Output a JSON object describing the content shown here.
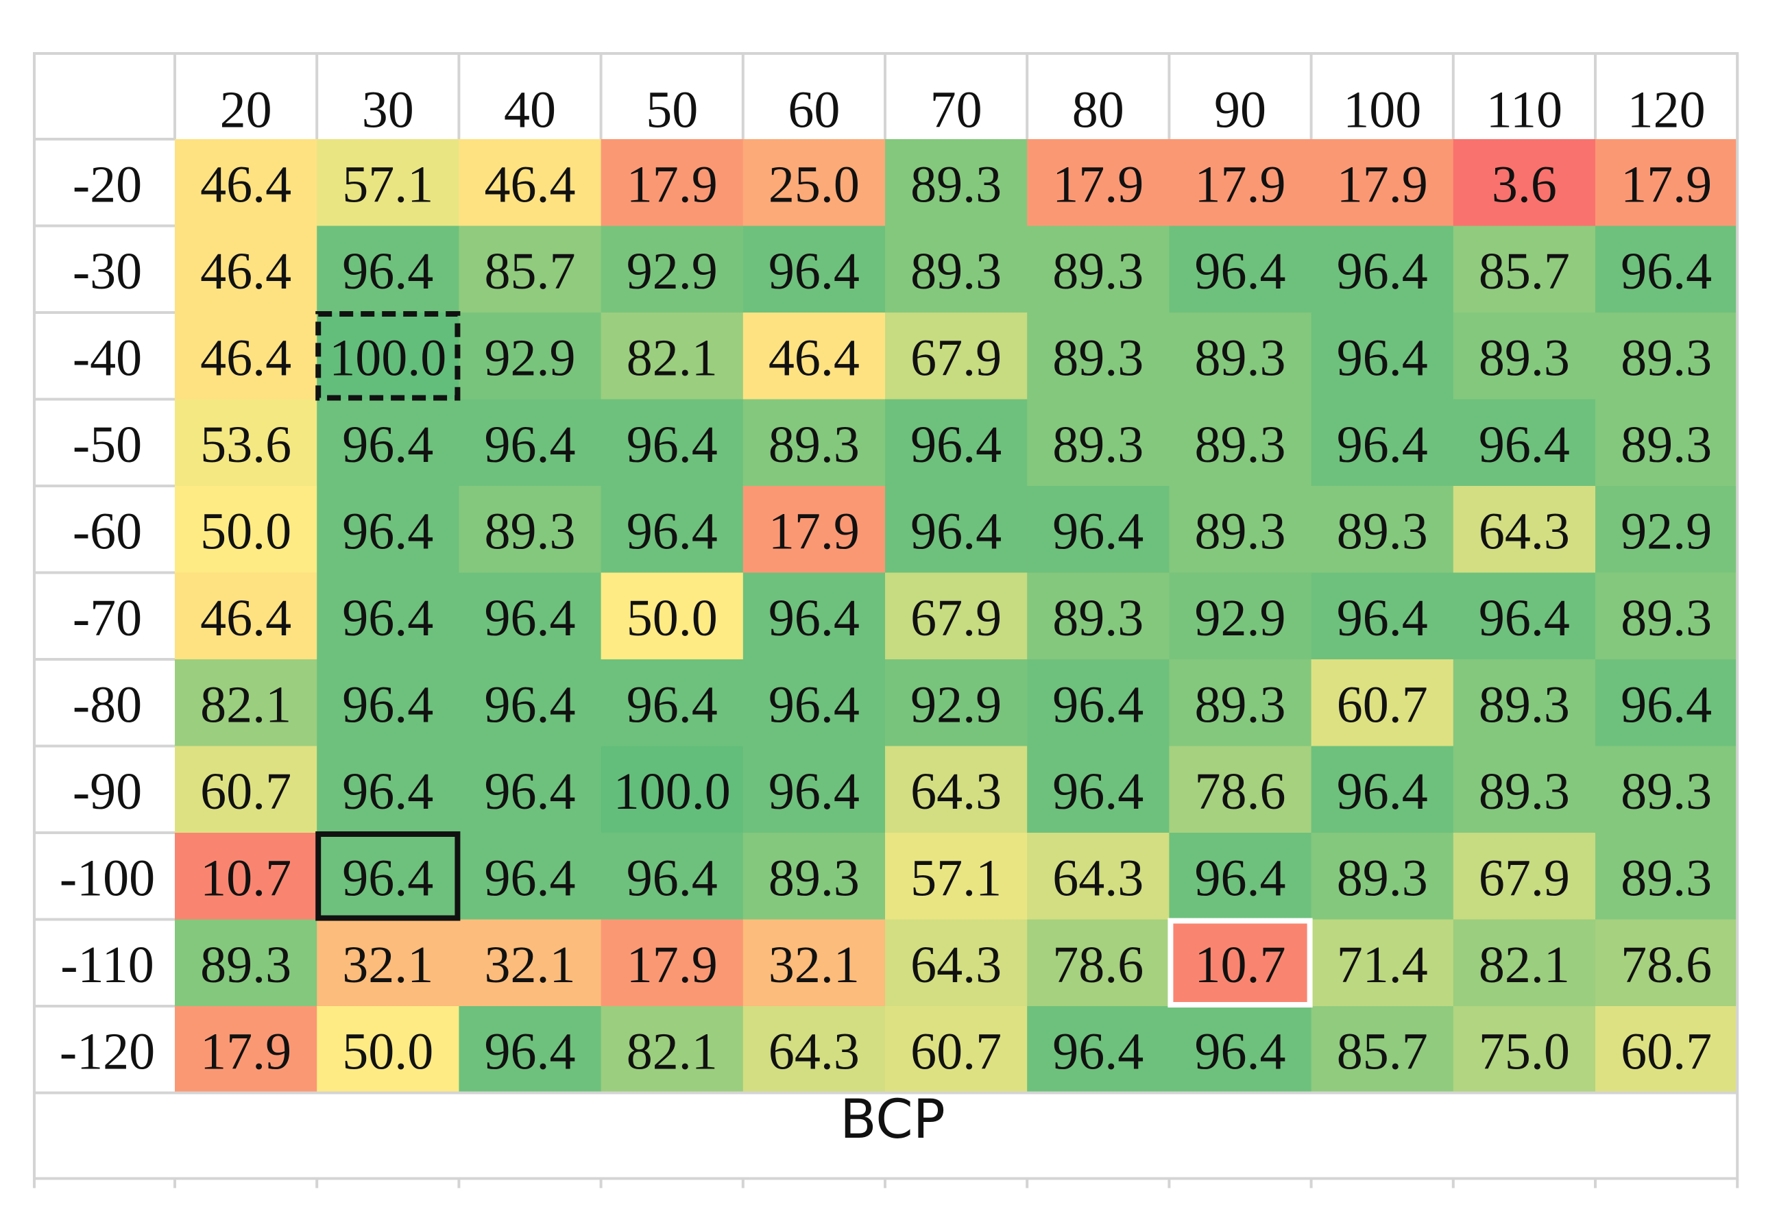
{
  "chart_data": {
    "type": "heatmap",
    "title": "",
    "xlabel": "BCP",
    "ylabel": "",
    "x_categories": [
      "20",
      "30",
      "40",
      "50",
      "60",
      "70",
      "80",
      "90",
      "100",
      "110",
      "120"
    ],
    "y_categories": [
      "-20",
      "-30",
      "-40",
      "-50",
      "-60",
      "-70",
      "-80",
      "-90",
      "-100",
      "-110",
      "-120"
    ],
    "values": [
      [
        "46.4",
        "57.1",
        "46.4",
        "17.9",
        "25.0",
        "89.3",
        "17.9",
        "17.9",
        "17.9",
        "3.6",
        "17.9"
      ],
      [
        "46.4",
        "96.4",
        "85.7",
        "92.9",
        "96.4",
        "89.3",
        "89.3",
        "96.4",
        "96.4",
        "85.7",
        "96.4"
      ],
      [
        "46.4",
        "100.0",
        "92.9",
        "82.1",
        "46.4",
        "67.9",
        "89.3",
        "89.3",
        "96.4",
        "89.3",
        "89.3"
      ],
      [
        "53.6",
        "96.4",
        "96.4",
        "96.4",
        "89.3",
        "96.4",
        "89.3",
        "89.3",
        "96.4",
        "96.4",
        "89.3"
      ],
      [
        "50.0",
        "96.4",
        "89.3",
        "96.4",
        "17.9",
        "96.4",
        "96.4",
        "89.3",
        "89.3",
        "64.3",
        "92.9"
      ],
      [
        "46.4",
        "96.4",
        "96.4",
        "50.0",
        "96.4",
        "67.9",
        "89.3",
        "92.9",
        "96.4",
        "96.4",
        "89.3"
      ],
      [
        "82.1",
        "96.4",
        "96.4",
        "96.4",
        "96.4",
        "92.9",
        "96.4",
        "89.3",
        "60.7",
        "89.3",
        "96.4"
      ],
      [
        "60.7",
        "96.4",
        "96.4",
        "100.0",
        "96.4",
        "64.3",
        "96.4",
        "78.6",
        "96.4",
        "89.3",
        "89.3"
      ],
      [
        "10.7",
        "96.4",
        "96.4",
        "96.4",
        "89.3",
        "57.1",
        "64.3",
        "96.4",
        "89.3",
        "67.9",
        "89.3"
      ],
      [
        "89.3",
        "32.1",
        "32.1",
        "17.9",
        "32.1",
        "64.3",
        "78.6",
        "10.7",
        "71.4",
        "82.1",
        "78.6"
      ],
      [
        "17.9",
        "50.0",
        "96.4",
        "82.1",
        "64.3",
        "60.7",
        "96.4",
        "96.4",
        "85.7",
        "75.0",
        "60.7"
      ]
    ],
    "value_range": [
      0,
      100
    ],
    "colorscale": {
      "low": "#f8696b",
      "mid": "#ffeb84",
      "high": "#63be7b"
    },
    "highlights": [
      {
        "row": "-40",
        "col": "30",
        "style": "dashed-black"
      },
      {
        "row": "-100",
        "col": "30",
        "style": "solid-black"
      },
      {
        "row": "-110",
        "col": "90",
        "style": "solid-white"
      }
    ],
    "grid": true,
    "legend": "none"
  }
}
